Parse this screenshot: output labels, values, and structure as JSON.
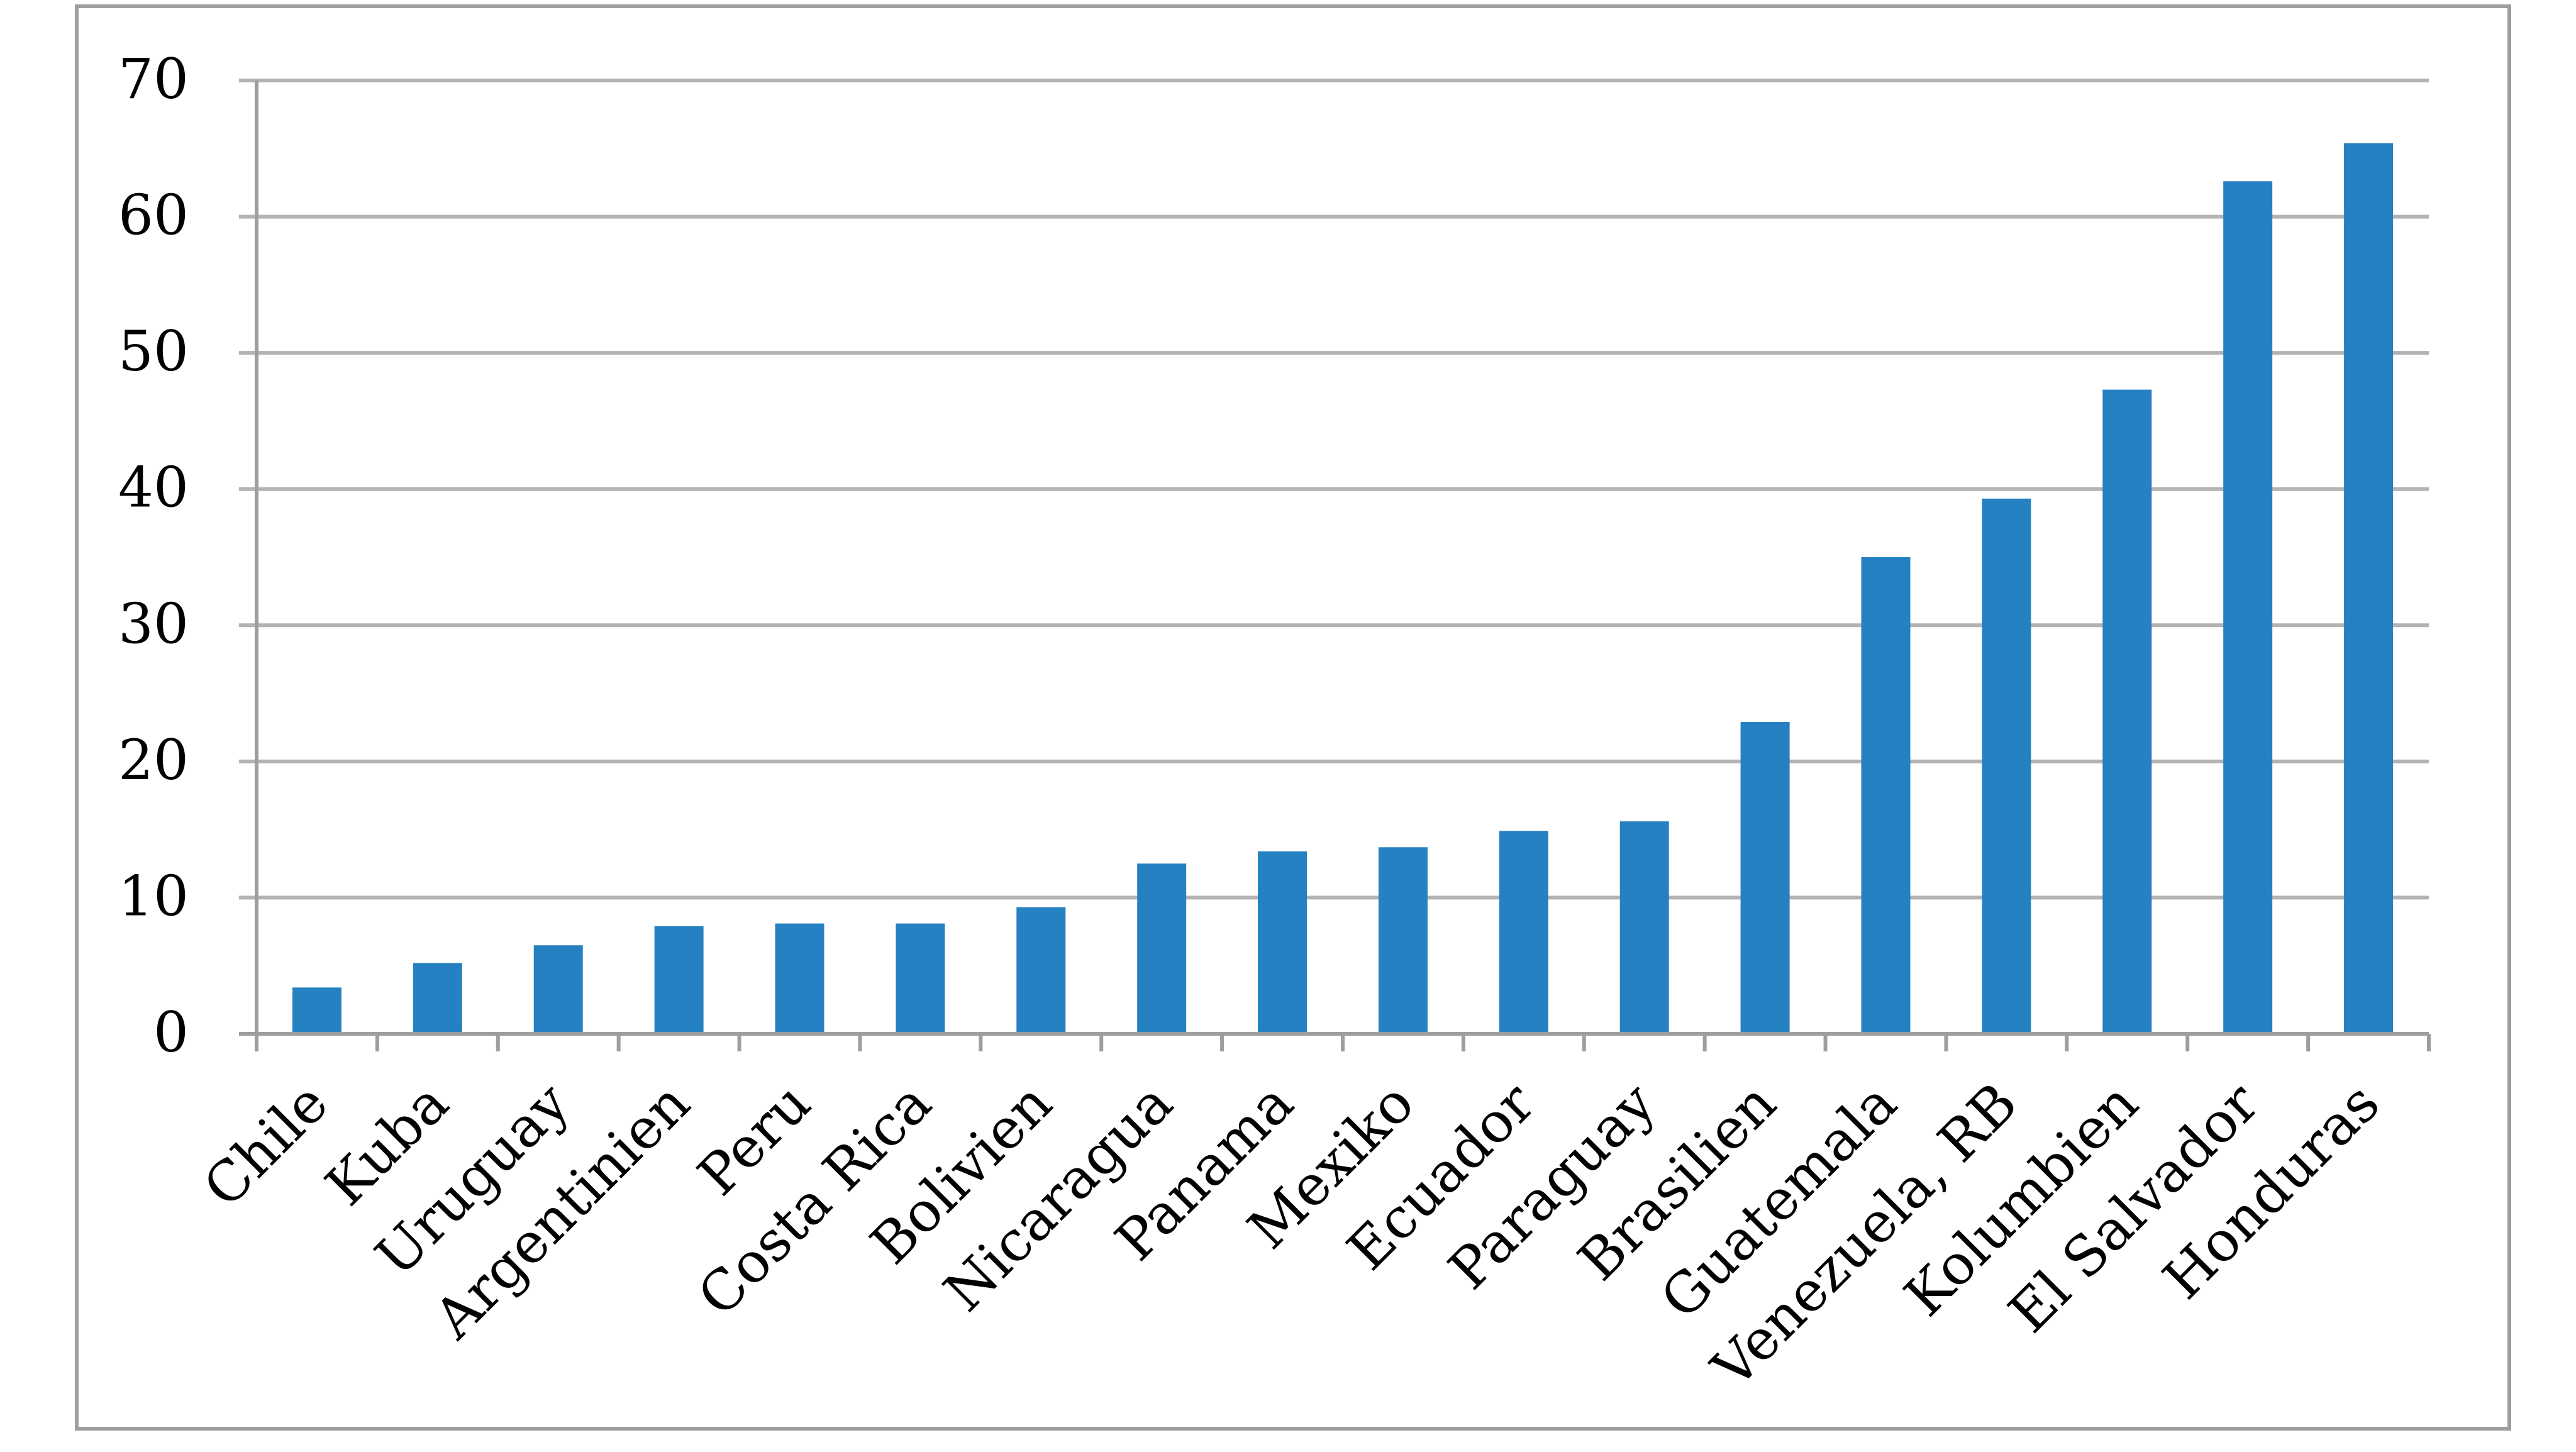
{
  "chart_data": {
    "type": "bar",
    "title": "",
    "xlabel": "",
    "ylabel": "",
    "categories": [
      "Chile",
      "Kuba",
      "Uruguay",
      "Argentinien",
      "Peru",
      "Costa Rica",
      "Bolivien",
      "Nicaragua",
      "Panama",
      "Mexiko",
      "Ecuador",
      "Paraguay",
      "Brasilien",
      "Guatemala",
      "Venezuela, RB",
      "Kolumbien",
      "El Salvador",
      "Honduras"
    ],
    "values": [
      3.4,
      5.2,
      6.5,
      7.9,
      8.1,
      8.1,
      9.3,
      12.5,
      13.4,
      13.7,
      14.9,
      15.6,
      22.9,
      35.0,
      39.3,
      47.3,
      62.6,
      65.4
    ],
    "ylim": [
      0,
      70
    ],
    "yticks": [
      0,
      10,
      20,
      30,
      40,
      50,
      60,
      70
    ],
    "grid": true,
    "legend": "none",
    "bar_color": "#2681C2",
    "grid_color": "#B3B3B3",
    "frame_color": "#9E9E9E"
  }
}
